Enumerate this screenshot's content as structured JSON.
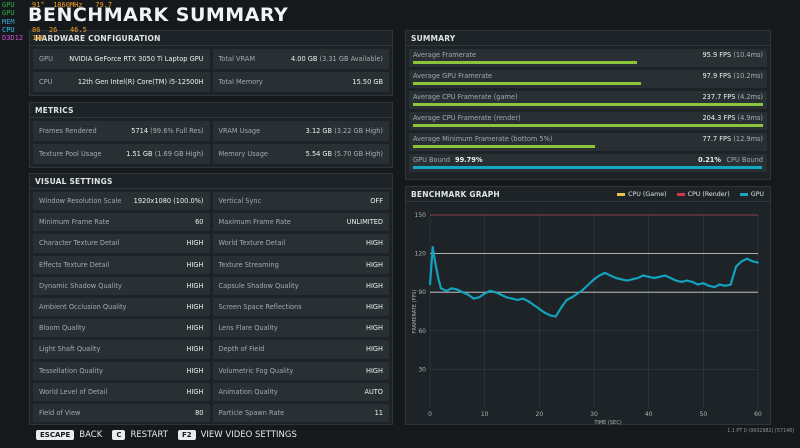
{
  "overlay": {
    "rows": [
      {
        "key": "GPU",
        "values": [
          "91",
          "°",
          "1860",
          "MHz",
          "79.7"
        ],
        "key_class": "k-gpu"
      },
      {
        "key": "GPU",
        "values": [
          "",
          "",
          "",
          "",
          ""
        ],
        "key_class": "k-gpu"
      },
      {
        "key": "MEM",
        "values": [
          "",
          "",
          "",
          "",
          ""
        ],
        "key_class": "k-mem"
      },
      {
        "key": "CPU",
        "values": [
          "86",
          "",
          "26",
          "",
          "46.5"
        ],
        "key_class": "k-cpu"
      },
      {
        "key": "D3D12",
        "values": [
          "108",
          "",
          "",
          "",
          ""
        ],
        "key_class": "k-api"
      }
    ]
  },
  "title": "BENCHMARK SUMMARY",
  "hardware": {
    "header": "HARDWARE CONFIGURATION",
    "items": [
      {
        "label": "GPU",
        "value": "NVIDIA GeForce RTX 3050 Ti Laptop GPU",
        "sub": ""
      },
      {
        "label": "Total VRAM",
        "value": "4.00 GB",
        "sub": "(3.31 GB Available)"
      },
      {
        "label": "CPU",
        "value": "12th Gen Intel(R) Core(TM) i5-12500H",
        "sub": ""
      },
      {
        "label": "Total Memory",
        "value": "15.50 GB",
        "sub": ""
      }
    ]
  },
  "metrics": {
    "header": "METRICS",
    "items": [
      {
        "label": "Frames Rendered",
        "value": "5714",
        "sub": "(99.6% Full Res)"
      },
      {
        "label": "VRAM Usage",
        "value": "3.12 GB",
        "sub": "(3.22 GB High)"
      },
      {
        "label": "Texture Pool Usage",
        "value": "1.51 GB",
        "sub": "(1.69 GB High)"
      },
      {
        "label": "Memory Usage",
        "value": "5.54 GB",
        "sub": "(5.70 GB High)"
      }
    ]
  },
  "visual": {
    "header": "VISUAL SETTINGS",
    "items": [
      {
        "label": "Window Resolution Scale",
        "value": "1920x1080 (100.0%)"
      },
      {
        "label": "Vertical Sync",
        "value": "OFF"
      },
      {
        "label": "Minimum Frame Rate",
        "value": "60"
      },
      {
        "label": "Maximum Frame Rate",
        "value": "UNLIMITED"
      },
      {
        "label": "Character Texture Detail",
        "value": "HIGH"
      },
      {
        "label": "World Texture Detail",
        "value": "HIGH"
      },
      {
        "label": "Effects Texture Detail",
        "value": "HIGH"
      },
      {
        "label": "Texture Streaming",
        "value": "HIGH"
      },
      {
        "label": "Dynamic Shadow Quality",
        "value": "HIGH"
      },
      {
        "label": "Capsule Shadow Quality",
        "value": "HIGH"
      },
      {
        "label": "Ambient Occlusion Quality",
        "value": "HIGH"
      },
      {
        "label": "Screen Space Reflections",
        "value": "HIGH"
      },
      {
        "label": "Bloom Quality",
        "value": "HIGH"
      },
      {
        "label": "Lens Flare Quality",
        "value": "HIGH"
      },
      {
        "label": "Light Shaft Quality",
        "value": "HIGH"
      },
      {
        "label": "Depth of Field",
        "value": "HIGH"
      },
      {
        "label": "Tessellation Quality",
        "value": "HIGH"
      },
      {
        "label": "Volumetric Fog Quality",
        "value": "HIGH"
      },
      {
        "label": "World Level of Detail",
        "value": "HIGH"
      },
      {
        "label": "Animation Quality",
        "value": "AUTO"
      },
      {
        "label": "Field of View",
        "value": "80"
      },
      {
        "label": "Particle Spawn Rate",
        "value": "11"
      }
    ]
  },
  "summary": {
    "header": "SUMMARY",
    "rows": [
      {
        "label": "Average Framerate",
        "value": "95.9 FPS",
        "sub": "(10.4ms)",
        "fill": 0.64
      },
      {
        "label": "Average GPU Framerate",
        "value": "97.9 FPS",
        "sub": "(10.2ms)",
        "fill": 0.65
      },
      {
        "label": "Average CPU Framerate (game)",
        "value": "237.7 FPS",
        "sub": "(4.2ms)",
        "fill": 1.0
      },
      {
        "label": "Average CPU Framerate (render)",
        "value": "204.3 FPS",
        "sub": "(4.9ms)",
        "fill": 1.0
      },
      {
        "label": "Average Minimum Framerate (bottom 5%)",
        "value": "77.7 FPS",
        "sub": "(12.9ms)",
        "fill": 0.52
      }
    ],
    "gpu_bound_label": "GPU Bound",
    "gpu_bound_value": "99.79%",
    "cpu_bound_value": "0.21%",
    "cpu_bound_label": "CPU Bound",
    "gpu_bound_fill": 0.9979
  },
  "graph": {
    "header": "BENCHMARK GRAPH",
    "legend": [
      {
        "name": "CPU (Game)",
        "color": "#e8c34a"
      },
      {
        "name": "CPU (Render)",
        "color": "#d8354a"
      },
      {
        "name": "GPU",
        "color": "#14a8c4"
      }
    ]
  },
  "chart_data": {
    "type": "line",
    "title": "BENCHMARK GRAPH",
    "xlabel": "TIME (SEC)",
    "ylabel": "FRAMERATE (FPS)",
    "xlim": [
      0,
      60
    ],
    "ylim": [
      0,
      150
    ],
    "x_ticks": [
      "0",
      "10",
      "20",
      "30",
      "40",
      "50",
      "60"
    ],
    "y_ticks": [
      "30",
      "60",
      "90",
      "120",
      "150"
    ],
    "reference_lines": [
      150,
      120,
      90
    ],
    "grid": true,
    "legend_position": "top-right",
    "series": [
      {
        "name": "GPU",
        "color": "#14a8c4",
        "x": [
          0,
          0.5,
          1,
          1.5,
          2,
          3,
          4,
          5,
          6,
          7,
          8,
          9,
          10,
          11,
          12,
          13,
          14,
          15,
          16,
          17,
          18,
          19,
          20,
          21,
          22,
          23,
          24,
          25,
          26,
          27,
          28,
          29,
          30,
          31,
          32,
          33,
          34,
          35,
          36,
          37,
          38,
          39,
          40,
          41,
          42,
          43,
          44,
          45,
          46,
          47,
          48,
          49,
          50,
          51,
          52,
          53,
          54,
          55,
          56,
          57,
          58,
          59,
          60
        ],
        "y": [
          96,
          125,
          112,
          101,
          93,
          91,
          93,
          92,
          90,
          88,
          85,
          86,
          89,
          91,
          90,
          88,
          86,
          85,
          84,
          85,
          83,
          80,
          77,
          74,
          72,
          71,
          78,
          84,
          86,
          89,
          92,
          96,
          100,
          103,
          105,
          103,
          101,
          100,
          99,
          100,
          101,
          103,
          102,
          101,
          102,
          103,
          101,
          99,
          98,
          99,
          98,
          96,
          97,
          95,
          94,
          96,
          95,
          96,
          110,
          114,
          116,
          114,
          113
        ]
      },
      {
        "name": "CPU (Game)",
        "color": "#e8c34a",
        "x": [],
        "y": []
      },
      {
        "name": "CPU (Render)",
        "color": "#d8354a",
        "x": [],
        "y": []
      }
    ]
  },
  "footer": {
    "escape_key": "ESCAPE",
    "escape_label": "BACK",
    "c_key": "C",
    "c_label": "RESTART",
    "f2_key": "F2",
    "f2_label": "VIEW VIDEO SETTINGS"
  },
  "build_info": "1.1 PT 0 (9932982) [57148]"
}
